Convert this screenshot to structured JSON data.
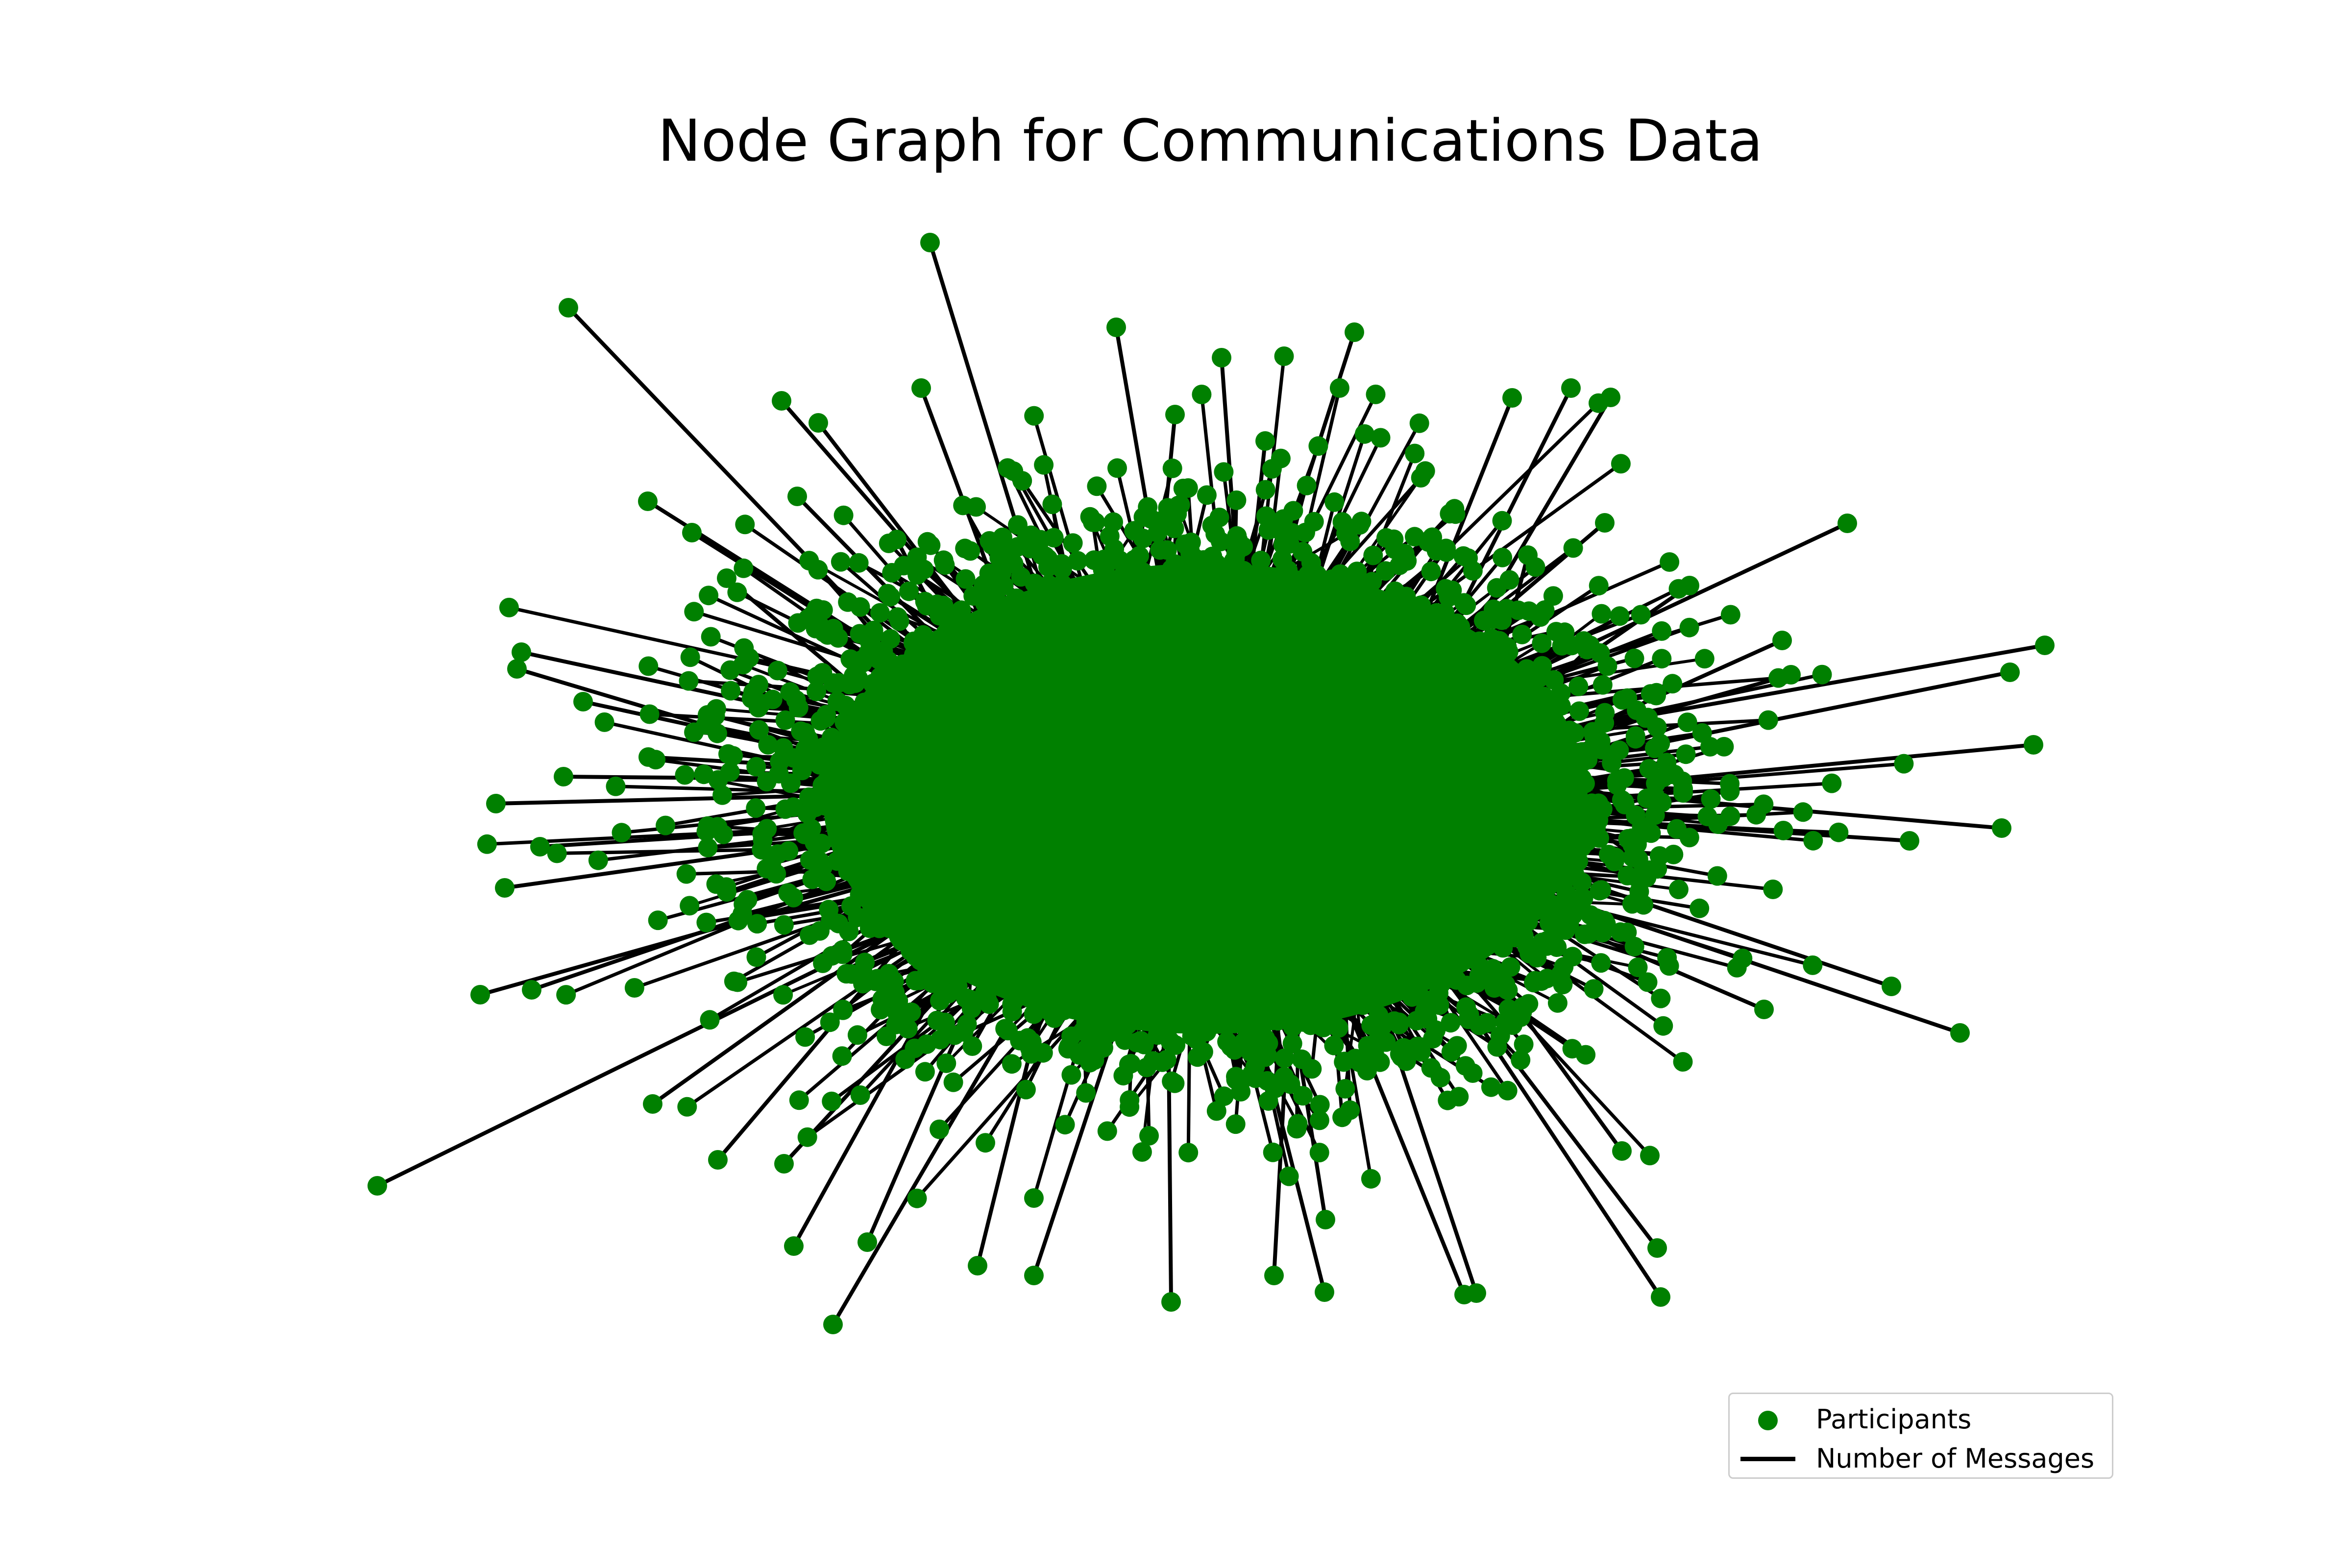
{
  "chart_data": {
    "type": "network",
    "title": "Node Graph for Communications Data",
    "legend": {
      "placement": "lower-right",
      "entries": [
        {
          "label": "Participants",
          "kind": "marker",
          "color": "#008000"
        },
        {
          "label": "Number of Messages",
          "kind": "line",
          "color": "#000000"
        }
      ]
    },
    "node_color": "#008000",
    "edge_color": "#000000",
    "axes_visible": false,
    "grid": false
  }
}
